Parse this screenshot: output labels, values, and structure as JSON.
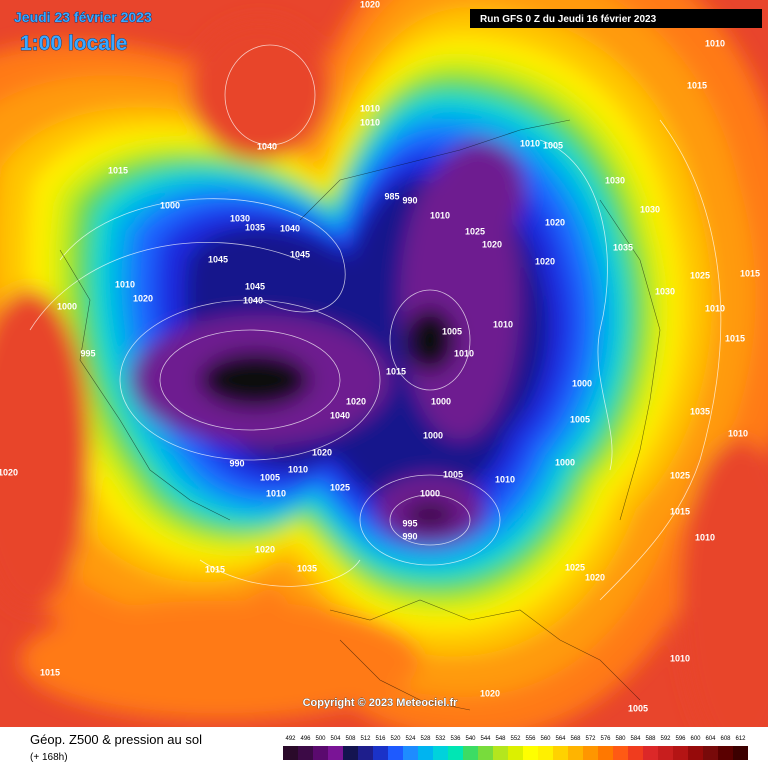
{
  "header": {
    "date": "Jeudi 23 février 2023",
    "local_time": "1:00 locale",
    "run": "Run GFS 0 Z du Jeudi 16 février 2023"
  },
  "map": {
    "copyright": "Copyright © 2023 Meteociel.fr",
    "isobar_labels": [
      "1020",
      "1040",
      "1015",
      "1000",
      "1030",
      "1035",
      "1040",
      "1045",
      "1045",
      "1010",
      "1020",
      "1045",
      "1040",
      "1000",
      "995",
      "1010",
      "1010",
      "1010",
      "1005",
      "985",
      "990",
      "1010",
      "1025",
      "1020",
      "1020",
      "1020",
      "1030",
      "1030",
      "1035",
      "1030",
      "1025",
      "1015",
      "1010",
      "1005",
      "1010",
      "1015",
      "1000",
      "1000",
      "1020",
      "1020",
      "1040",
      "990",
      "1005",
      "1010",
      "1010",
      "1025",
      "1005",
      "1010",
      "1000",
      "995",
      "990",
      "1000",
      "1005",
      "1000",
      "1020",
      "1015",
      "1035",
      "1025",
      "1020",
      "1015",
      "1010",
      "1025",
      "1035",
      "1010",
      "1015",
      "1010",
      "1015",
      "1010",
      "1020",
      "1015",
      "1020",
      "1005",
      "1010"
    ]
  },
  "footer": {
    "title": "Géop. Z500 & pression au sol",
    "lead": "(+ 168h)",
    "scale": {
      "values": [
        492,
        496,
        500,
        504,
        508,
        512,
        516,
        520,
        524,
        528,
        532,
        536,
        540,
        544,
        548,
        552,
        556,
        560,
        564,
        568,
        572,
        576,
        580,
        584,
        588,
        592,
        596,
        600,
        604,
        608,
        612
      ],
      "colors": [
        "#2a0a2a",
        "#3c0a46",
        "#5a0a6e",
        "#7a1496",
        "#141450",
        "#1e1e8c",
        "#1a32c8",
        "#1e5aff",
        "#1e8cff",
        "#00b4f0",
        "#00d2dc",
        "#00e6b4",
        "#3cdc64",
        "#78dc3c",
        "#b4e61e",
        "#dcf000",
        "#ffff00",
        "#fff000",
        "#ffd200",
        "#ffb400",
        "#ff9600",
        "#ff7800",
        "#ff5a14",
        "#f03c1e",
        "#dc2828",
        "#c81e1e",
        "#b41414",
        "#960a0a",
        "#780a0a",
        "#5a0000",
        "#3c0000"
      ]
    }
  }
}
